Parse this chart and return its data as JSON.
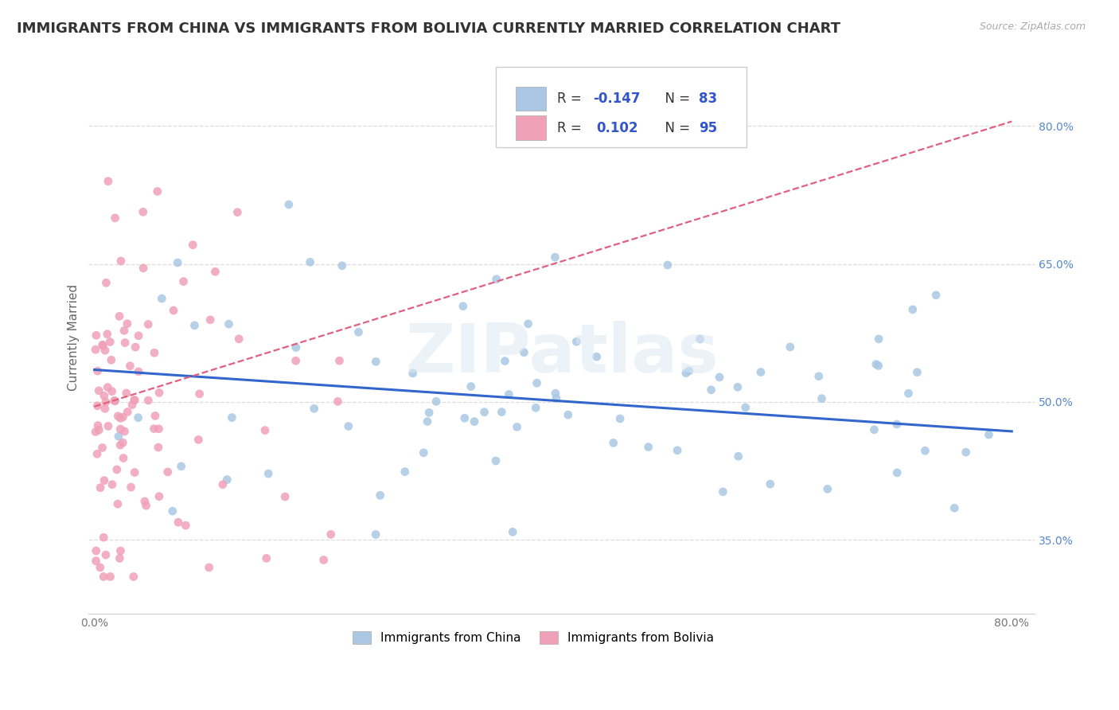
{
  "title": "IMMIGRANTS FROM CHINA VS IMMIGRANTS FROM BOLIVIA CURRENTLY MARRIED CORRELATION CHART",
  "source": "Source: ZipAtlas.com",
  "ylabel": "Currently Married",
  "xlim": [
    -0.005,
    0.82
  ],
  "ylim": [
    0.27,
    0.87
  ],
  "yticks": [
    0.35,
    0.5,
    0.65,
    0.8
  ],
  "ytick_labels": [
    "35.0%",
    "50.0%",
    "65.0%",
    "80.0%"
  ],
  "xtick_labels": [
    "0.0%",
    "",
    "",
    "",
    "80.0%"
  ],
  "china_color": "#aac8e4",
  "bolivia_color": "#f0a0b8",
  "china_line_color": "#3366CC",
  "bolivia_line_color": "#E06080",
  "china_R": -0.147,
  "china_N": 83,
  "bolivia_R": 0.102,
  "bolivia_N": 95,
  "watermark": "ZIPatlas",
  "background_color": "#ffffff",
  "legend_china_label": "Immigrants from China",
  "legend_bolivia_label": "Immigrants from Bolivia",
  "china_trend_x0": 0.0,
  "china_trend_y0": 0.535,
  "china_trend_x1": 0.8,
  "china_trend_y1": 0.468,
  "bolivia_trend_x0": 0.0,
  "bolivia_trend_y0": 0.495,
  "bolivia_trend_x1": 0.8,
  "bolivia_trend_y1": 0.805,
  "title_fontsize": 13,
  "axis_label_fontsize": 11,
  "tick_fontsize": 10,
  "legend_fontsize": 11
}
